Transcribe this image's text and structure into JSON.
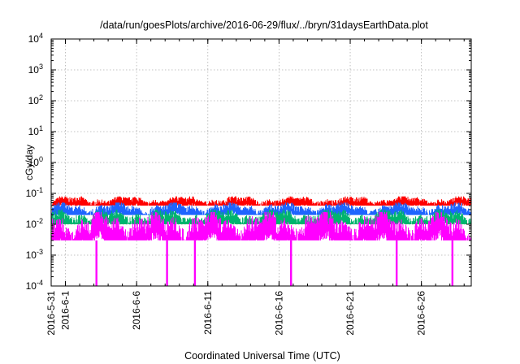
{
  "chart_data": {
    "type": "area",
    "title": "/data/run/goesPlots/archive/2016-06-29/flux/../bryn/31daysEarthData.plot",
    "xlabel": "Coordinated Universal Time (UTC)",
    "ylabel": "cGy/day",
    "yscale": "log",
    "ylim": [
      "1e-4",
      "1e4"
    ],
    "xlim": [
      "2016-05-31",
      "2016-06-29T12:00"
    ],
    "y_ticks": [
      {
        "base": "10",
        "exp": "-4",
        "value": 0.0001
      },
      {
        "base": "10",
        "exp": "-3",
        "value": 0.001
      },
      {
        "base": "10",
        "exp": "-2",
        "value": 0.01
      },
      {
        "base": "10",
        "exp": "-1",
        "value": 0.1
      },
      {
        "base": "10",
        "exp": "0",
        "value": 1
      },
      {
        "base": "10",
        "exp": "1",
        "value": 10
      },
      {
        "base": "10",
        "exp": "2",
        "value": 100
      },
      {
        "base": "10",
        "exp": "3",
        "value": 1000
      },
      {
        "base": "10",
        "exp": "4",
        "value": 10000
      }
    ],
    "x_ticks": [
      {
        "label": "2016-5-31",
        "date": "2016-05-31"
      },
      {
        "label": "2016-6-1",
        "date": "2016-06-01"
      },
      {
        "label": "2016-6-6",
        "date": "2016-06-06"
      },
      {
        "label": "2016-6-11",
        "date": "2016-06-11"
      },
      {
        "label": "2016-6-16",
        "date": "2016-06-16"
      },
      {
        "label": "2016-6-21",
        "date": "2016-06-21"
      },
      {
        "label": "2016-6-26",
        "date": "2016-06-26"
      }
    ],
    "grid": true,
    "series": [
      {
        "color": "#ff0000",
        "typical_range": [
          0.04,
          0.08
        ]
      },
      {
        "color": "#1e64ff",
        "typical_range": [
          0.02,
          0.05
        ]
      },
      {
        "color": "#00b46e",
        "typical_range": [
          0.01,
          0.03
        ]
      },
      {
        "color": "#ff00ff",
        "typical_range": [
          0.003,
          0.025
        ]
      }
    ],
    "dropouts": [
      "2016-06-03T04:00",
      "2016-06-08T03:00",
      "2016-06-10T02:00",
      "2016-06-16T20:00",
      "2016-06-24T06:00",
      "2016-06-28T04:00"
    ]
  }
}
